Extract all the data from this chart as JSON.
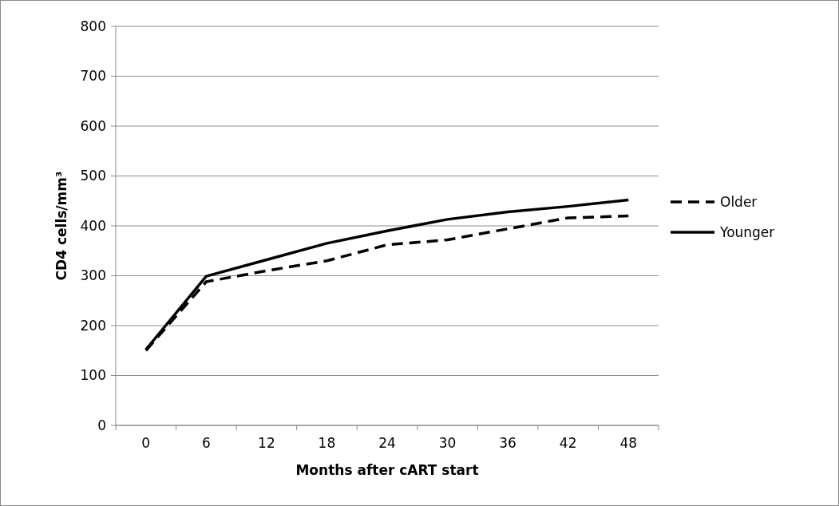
{
  "chart_data": {
    "type": "line",
    "xlabel": "Months after cART start",
    "ylabel": "CD4 cells/mm³",
    "categories": [
      "0",
      "6",
      "12",
      "18",
      "24",
      "30",
      "36",
      "42",
      "48"
    ],
    "series": [
      {
        "name": "Older",
        "color": "#000000",
        "line_style": "dashed",
        "values": [
          150,
          288,
          310,
          330,
          362,
          372,
          394,
          416,
          420
        ]
      },
      {
        "name": "Younger",
        "color": "#000000",
        "line_style": "solid",
        "values": [
          152,
          299,
          332,
          365,
          390,
          413,
          428,
          439,
          452
        ]
      }
    ],
    "ylim": [
      0,
      800
    ],
    "yticks": [
      0,
      100,
      200,
      300,
      400,
      500,
      600,
      700,
      800
    ],
    "grid": "y",
    "legend": "right",
    "marker": "none"
  }
}
